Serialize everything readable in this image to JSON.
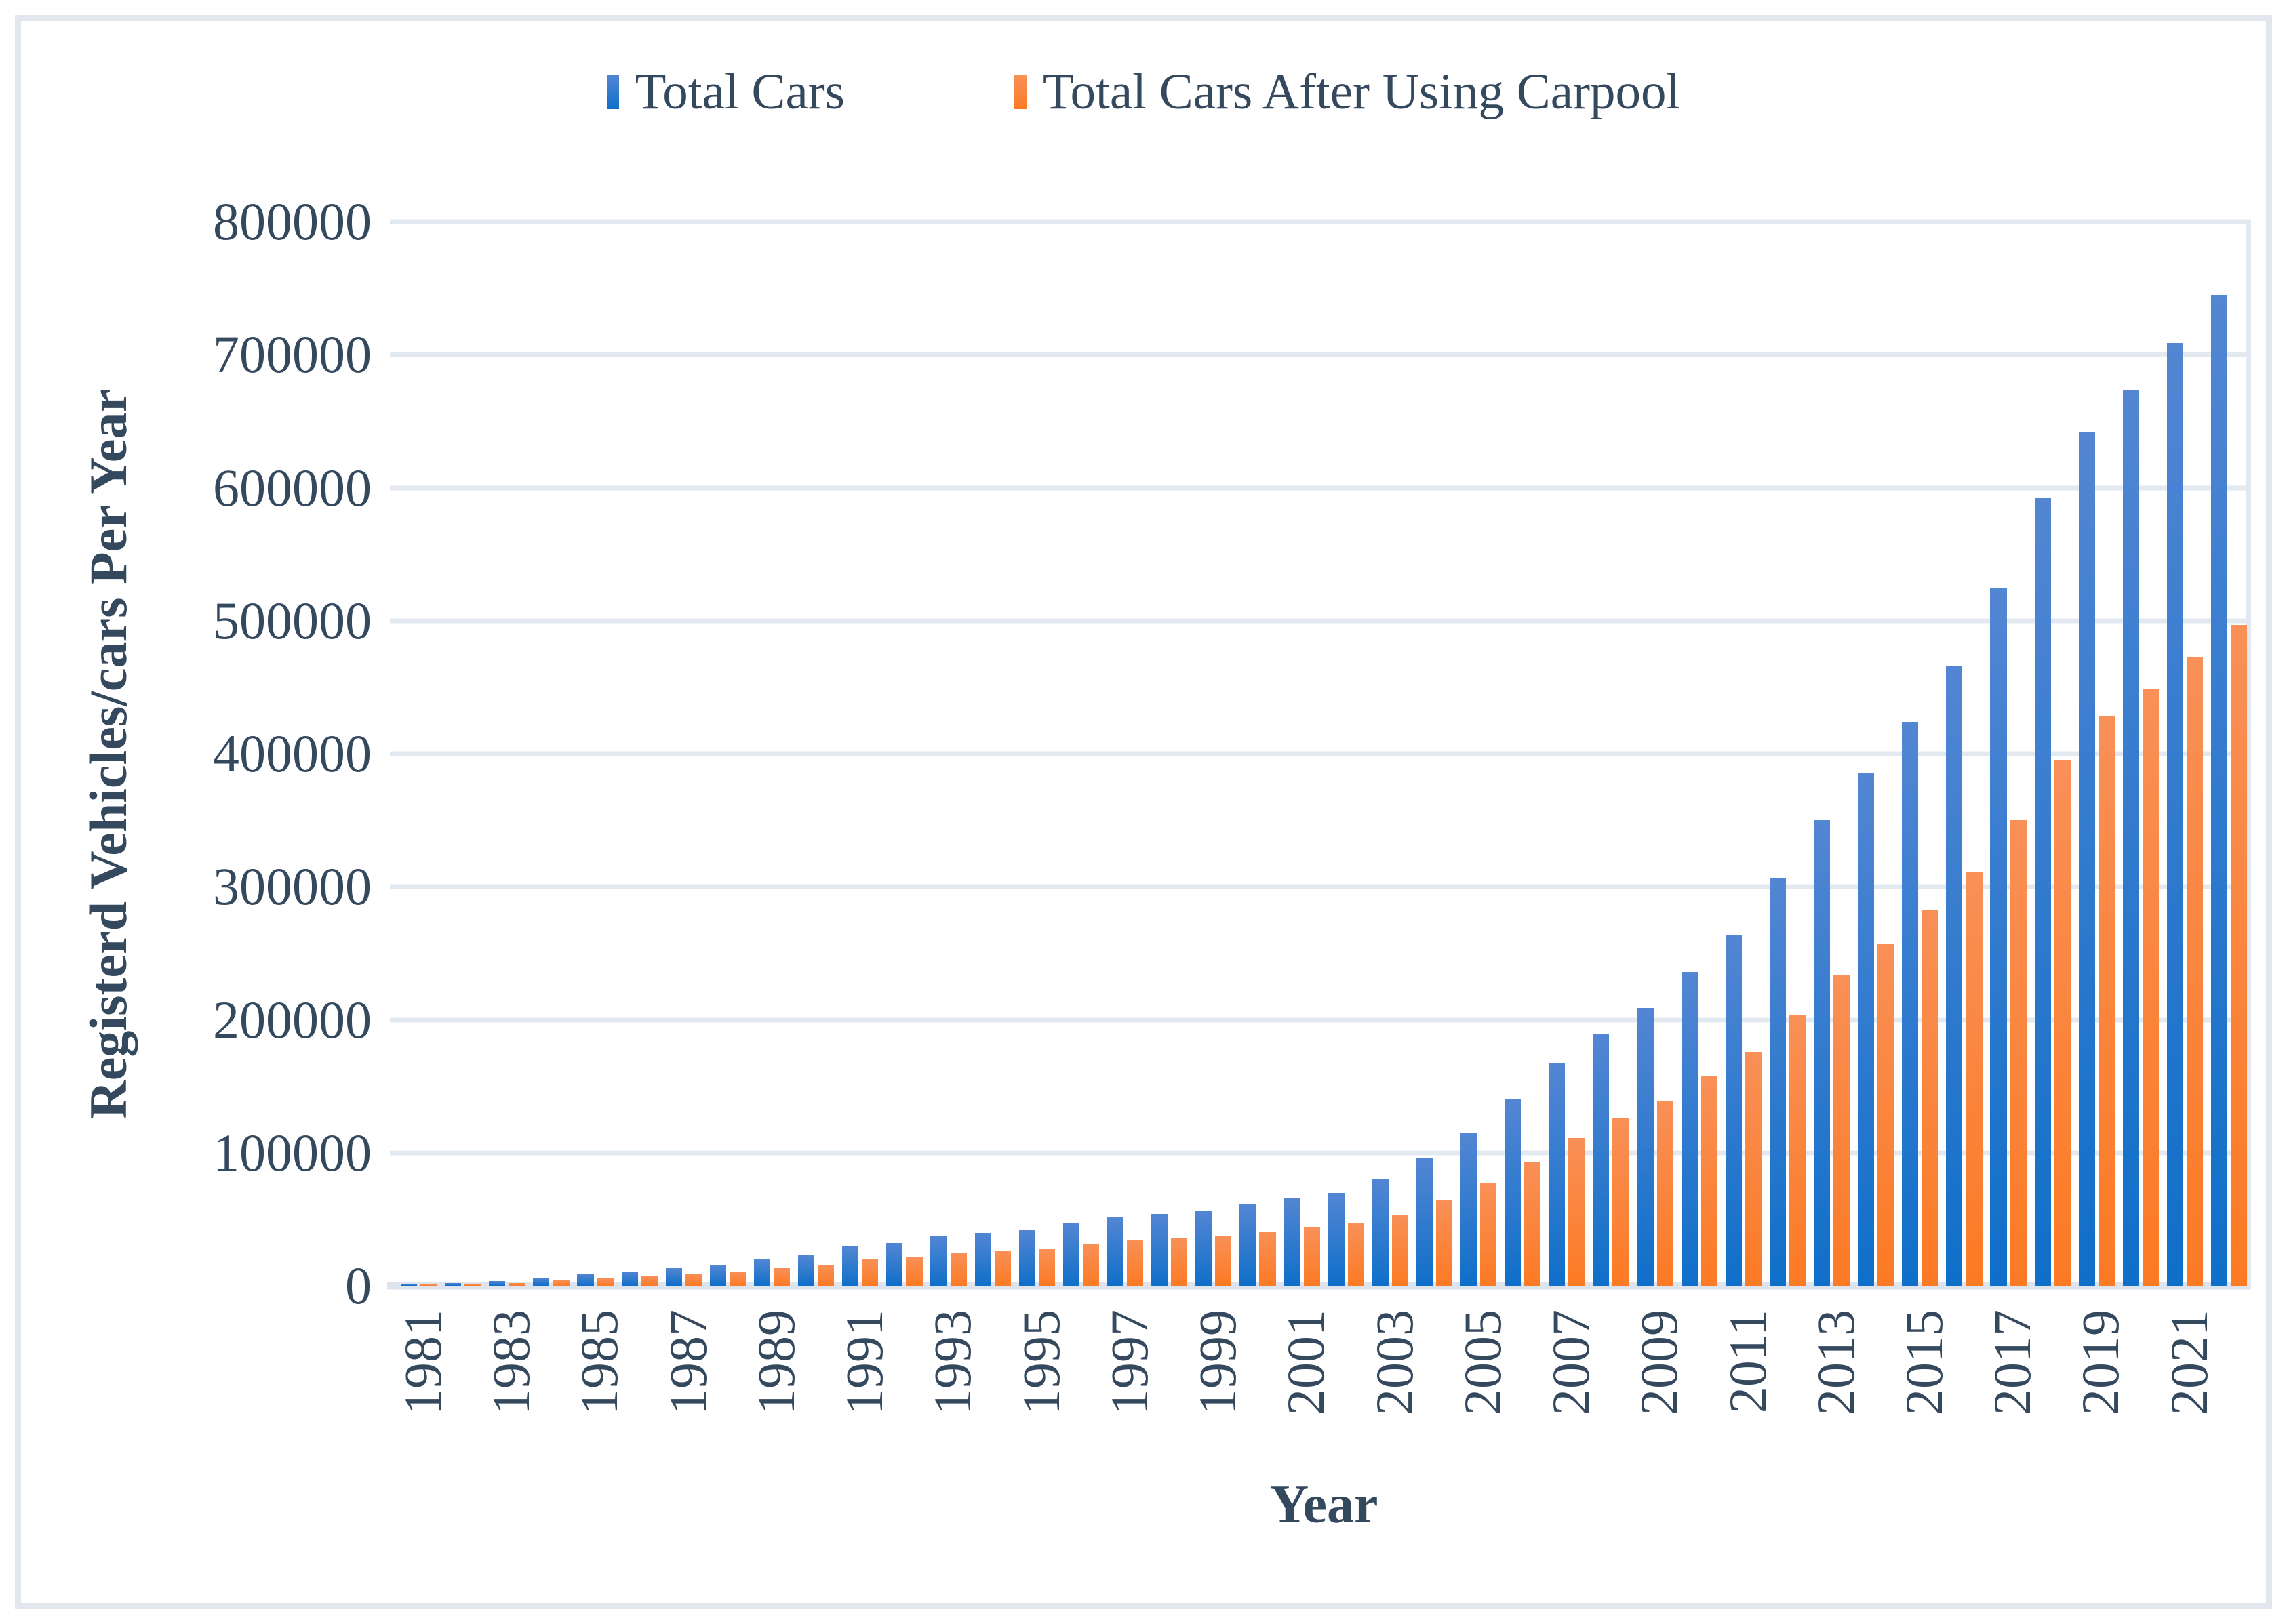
{
  "legend": {
    "items": [
      {
        "label": "Total Cars",
        "color_top": "#5386d3",
        "color_bottom": "#0f6fc9"
      },
      {
        "label": "Total Cars After Using Carpool",
        "color_top": "#f99057",
        "color_bottom": "#fc7a24"
      }
    ]
  },
  "y_axis": {
    "title": "Registerd Vehicles/cars Per Year",
    "ticks": [
      "800000",
      "700000",
      "600000",
      "500000",
      "400000",
      "300000",
      "200000",
      "100000",
      "0"
    ],
    "max": 800000
  },
  "x_axis": {
    "title": "Year",
    "labeled_years": [
      "1981",
      "1983",
      "1985",
      "1987",
      "1989",
      "1991",
      "1993",
      "1995",
      "1997",
      "1999",
      "2001",
      "2003",
      "2005",
      "2007",
      "2009",
      "2011",
      "2013",
      "2015",
      "2017",
      "2019",
      "2021"
    ]
  },
  "colors": {
    "text": "#35495e",
    "gridline": "#e3e9f1",
    "frame_border": "#e2e7ee"
  },
  "chart_data": {
    "type": "bar",
    "title": "",
    "xlabel": "Year",
    "ylabel": "Registerd Vehicles/cars Per Year",
    "ylim": [
      0,
      800000
    ],
    "grid": "horizontal, every 100000",
    "legend_position": "top-center",
    "categories": [
      1981,
      1982,
      1983,
      1984,
      1985,
      1986,
      1987,
      1988,
      1989,
      1990,
      1991,
      1992,
      1993,
      1994,
      1995,
      1996,
      1997,
      1998,
      1999,
      2000,
      2001,
      2002,
      2003,
      2004,
      2005,
      2006,
      2007,
      2008,
      2009,
      2010,
      2011,
      2012,
      2013,
      2014,
      2015,
      2016,
      2017,
      2018,
      2019,
      2020,
      2021,
      2022
    ],
    "series": [
      {
        "name": "Total Cars",
        "values": [
          1500,
          2000,
          3500,
          6000,
          8500,
          10500,
          13500,
          15500,
          20000,
          23000,
          29500,
          32000,
          37000,
          39500,
          42000,
          47000,
          51500,
          54000,
          56000,
          61000,
          65500,
          70000,
          80000,
          96500,
          115000,
          140000,
          167000,
          189000,
          209000,
          236000,
          264000,
          306000,
          350000,
          385000,
          424000,
          466000,
          525000,
          592000,
          642000,
          673000,
          709000,
          745000
        ]
      },
      {
        "name": "Total Cars After Using Carpool",
        "values": [
          1000,
          1300,
          2300,
          4000,
          5700,
          7000,
          9000,
          10300,
          13300,
          15300,
          19700,
          21300,
          24700,
          26300,
          28000,
          31300,
          34300,
          36000,
          37300,
          40700,
          43700,
          46700,
          53300,
          64300,
          76700,
          93300,
          111300,
          126000,
          139300,
          157300,
          176000,
          204000,
          233300,
          256700,
          282700,
          310700,
          350000,
          394700,
          428000,
          448700,
          472700,
          496700
        ]
      }
    ]
  }
}
